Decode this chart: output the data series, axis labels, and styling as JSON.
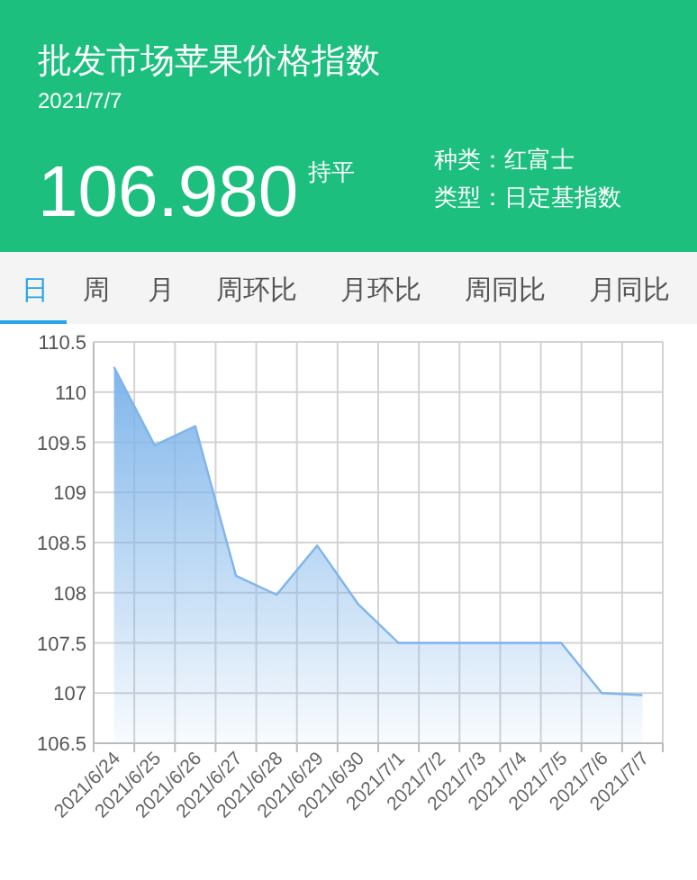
{
  "chart_data": [
    {
      "type": "other",
      "title": "批发市场苹果价格指数",
      "subtitle": "2021/7/7",
      "color": "#1dbf7f",
      "annotations": [
        "106.980",
        "持平",
        "种类：红富士",
        "类型：日定基指数",
        "日",
        "周",
        "月",
        "周环比",
        "月环比",
        "周同比",
        "月同比"
      ]
    },
    {
      "type": "area",
      "categories": [
        "2021/6/24",
        "2021/6/25",
        "2021/6/26",
        "2021/6/27",
        "2021/6/28",
        "2021/6/29",
        "2021/6/30",
        "2021/7/1",
        "2021/7/2",
        "2021/7/3",
        "2021/7/4",
        "2021/7/5",
        "2021/7/6",
        "2021/7/7"
      ],
      "values": [
        110.25,
        109.47,
        109.66,
        108.17,
        107.98,
        108.47,
        107.89,
        107.5,
        107.5,
        107.5,
        107.5,
        107.5,
        107.0,
        106.98
      ],
      "color": "#7fb5ea",
      "ylim": [
        106.5,
        110.5
      ],
      "yticks": [
        106.5,
        107,
        107.5,
        108,
        108.5,
        109,
        109.5,
        110,
        110.5
      ],
      "grid": true
    }
  ]
}
